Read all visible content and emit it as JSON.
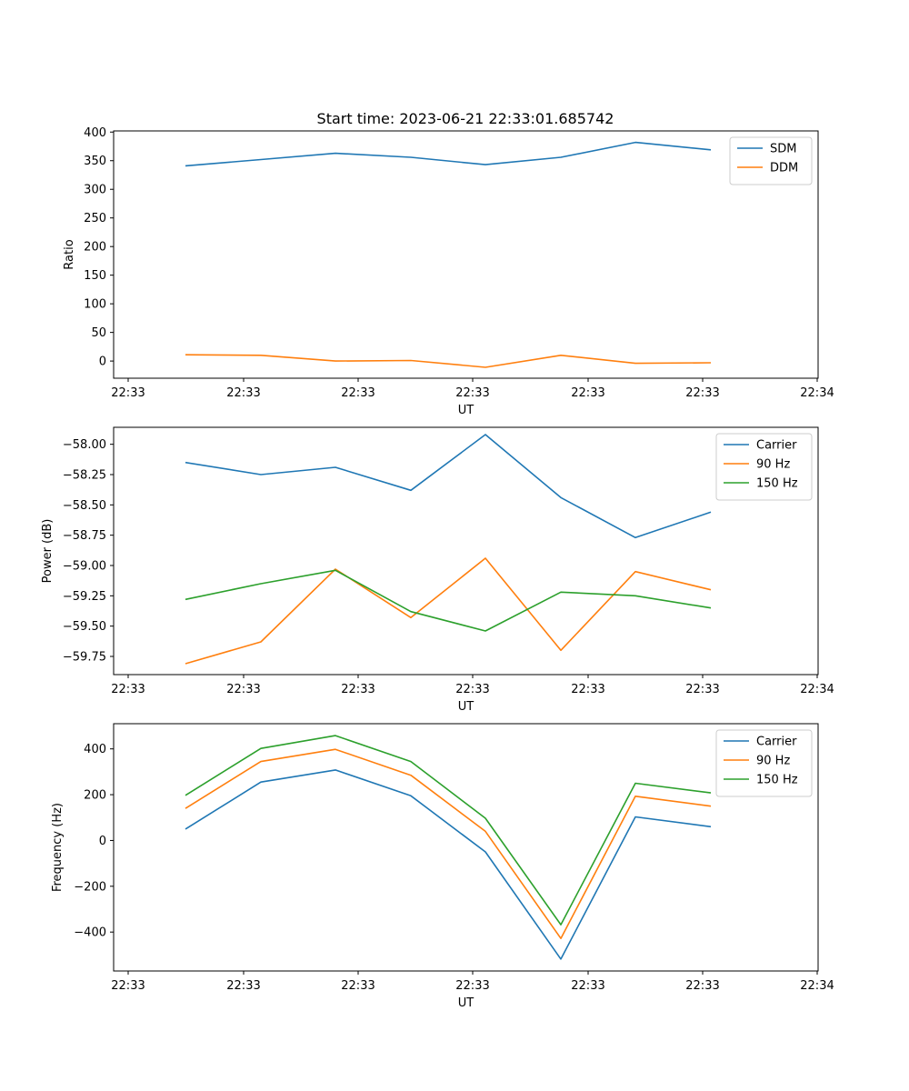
{
  "title": "Start time: 2023-06-21 22:33:01.685742",
  "colors": {
    "blue": "#1f77b4",
    "orange": "#ff7f0e",
    "green": "#2ca02c"
  },
  "chart_data": [
    {
      "type": "line",
      "xlabel": "UT",
      "ylabel": "Ratio",
      "x_tick_labels": [
        "22:33",
        "22:33",
        "22:33",
        "22:33",
        "22:33",
        "22:33",
        "22:34"
      ],
      "y_ticks": [
        0,
        50,
        100,
        150,
        200,
        250,
        300,
        350,
        400
      ],
      "y_tick_labels": [
        "0",
        "50",
        "100",
        "150",
        "200",
        "250",
        "300",
        "350",
        "400"
      ],
      "ylim": [
        -30,
        402
      ],
      "legend_position": "top-right",
      "series": [
        {
          "name": "SDM",
          "color": "blue",
          "values": [
            341,
            352,
            363,
            356,
            343,
            356,
            382,
            369
          ]
        },
        {
          "name": "DDM",
          "color": "orange",
          "values": [
            11,
            10,
            0,
            1,
            -11,
            10,
            -4,
            -3
          ]
        }
      ]
    },
    {
      "type": "line",
      "xlabel": "UT",
      "ylabel": "Power (dB)",
      "x_tick_labels": [
        "22:33",
        "22:33",
        "22:33",
        "22:33",
        "22:33",
        "22:33",
        "22:34"
      ],
      "y_ticks": [
        -59.75,
        -59.5,
        -59.25,
        -59.0,
        -58.75,
        -58.5,
        -58.25,
        -58.0
      ],
      "y_tick_labels": [
        "−59.75",
        "−59.50",
        "−59.25",
        "−59.00",
        "−58.75",
        "−58.50",
        "−58.25",
        "−58.00"
      ],
      "ylim": [
        -59.9,
        -57.86
      ],
      "legend_position": "top-right",
      "series": [
        {
          "name": "Carrier",
          "color": "blue",
          "values": [
            -58.15,
            -58.25,
            -58.19,
            -58.38,
            -57.92,
            -58.44,
            -58.77,
            -58.56
          ]
        },
        {
          "name": "90 Hz",
          "color": "orange",
          "values": [
            -59.81,
            -59.63,
            -59.03,
            -59.43,
            -58.94,
            -59.7,
            -59.05,
            -59.2
          ]
        },
        {
          "name": "150 Hz",
          "color": "green",
          "values": [
            -59.28,
            -59.15,
            -59.04,
            -59.38,
            -59.54,
            -59.22,
            -59.25,
            -59.35
          ]
        }
      ]
    },
    {
      "type": "line",
      "xlabel": "UT",
      "ylabel": "Frequency (Hz)",
      "x_tick_labels": [
        "22:33",
        "22:33",
        "22:33",
        "22:33",
        "22:33",
        "22:33",
        "22:34"
      ],
      "y_ticks": [
        -400,
        -200,
        0,
        200,
        400
      ],
      "y_tick_labels": [
        "−400",
        "−200",
        "0",
        "200",
        "400"
      ],
      "ylim": [
        -570,
        510
      ],
      "legend_position": "top-right",
      "series": [
        {
          "name": "Carrier",
          "color": "blue",
          "values": [
            50,
            255,
            308,
            195,
            -50,
            -518,
            103,
            60
          ]
        },
        {
          "name": "90 Hz",
          "color": "orange",
          "values": [
            140,
            345,
            398,
            285,
            40,
            -428,
            193,
            150
          ]
        },
        {
          "name": "150 Hz",
          "color": "green",
          "values": [
            197,
            402,
            458,
            345,
            97,
            -368,
            250,
            208
          ]
        }
      ]
    }
  ]
}
